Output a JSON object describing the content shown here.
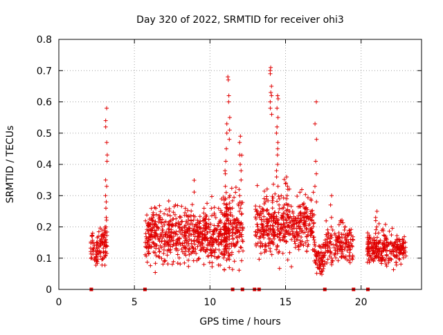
{
  "chart_data": {
    "type": "scatter",
    "title": "Day 320 of 2022, SRMTID for receiver ohi3",
    "xlabel": "GPS time / hours",
    "ylabel": "SRMTID / TECUs",
    "xlim": [
      0,
      24
    ],
    "ylim": [
      0,
      0.8
    ],
    "xticks": [
      0,
      5,
      10,
      15,
      20
    ],
    "yticks": [
      0,
      0.1,
      0.2,
      0.3,
      0.4,
      0.5,
      0.6,
      0.7,
      0.8
    ],
    "grid": true,
    "marker": "plus",
    "color": "#e00000",
    "clusters": [
      {
        "x": [
          2.1,
          3.2
        ],
        "base": 0.14,
        "spread": 0.05,
        "n": 110
      },
      {
        "x": [
          5.7,
          11.3
        ],
        "base": 0.17,
        "spread": 0.07,
        "n": 650
      },
      {
        "x": [
          10.9,
          12.2
        ],
        "base": 0.2,
        "spread": 0.09,
        "n": 140
      },
      {
        "x": [
          13.0,
          16.9
        ],
        "base": 0.2,
        "spread": 0.07,
        "n": 450
      },
      {
        "x": [
          16.9,
          17.6
        ],
        "base": 0.1,
        "spread": 0.04,
        "n": 70
      },
      {
        "x": [
          17.6,
          19.5
        ],
        "base": 0.14,
        "spread": 0.05,
        "n": 160
      },
      {
        "x": [
          20.4,
          23.0
        ],
        "base": 0.13,
        "spread": 0.04,
        "n": 260
      }
    ],
    "spikes": [
      {
        "x": 3.15,
        "y": [
          0.58,
          0.54,
          0.52,
          0.47,
          0.43,
          0.41,
          0.35,
          0.33,
          0.3,
          0.28,
          0.26,
          0.23,
          0.2,
          0.18
        ]
      },
      {
        "x": 11.05,
        "y": [
          0.53,
          0.5,
          0.45,
          0.41,
          0.38,
          0.37,
          0.33,
          0.31,
          0.29,
          0.27,
          0.25
        ]
      },
      {
        "x": 11.25,
        "y": [
          0.68,
          0.67,
          0.62,
          0.6,
          0.55,
          0.51,
          0.48
        ]
      },
      {
        "x": 12.0,
        "y": [
          0.49,
          0.47,
          0.43,
          0.4,
          0.38,
          0.35,
          0.32,
          0.3,
          0.26,
          0.25
        ]
      },
      {
        "x": 14.05,
        "y": [
          0.71,
          0.7,
          0.69,
          0.65,
          0.63,
          0.62,
          0.6,
          0.58,
          0.56
        ]
      },
      {
        "x": 14.45,
        "y": [
          0.62,
          0.61,
          0.58,
          0.55,
          0.52,
          0.5,
          0.47,
          0.45,
          0.43,
          0.4,
          0.38,
          0.36,
          0.33
        ]
      },
      {
        "x": 15.1,
        "y": [
          0.36,
          0.34,
          0.33,
          0.32,
          0.3,
          0.29,
          0.27
        ]
      },
      {
        "x": 17.0,
        "y": [
          0.6,
          0.53,
          0.48,
          0.41,
          0.37,
          0.33,
          0.28
        ]
      },
      {
        "x": 18.0,
        "y": [
          0.3,
          0.27,
          0.23,
          0.2
        ]
      },
      {
        "x": 21.0,
        "y": [
          0.25,
          0.23,
          0.22,
          0.2
        ]
      }
    ],
    "zero_points": [
      2.15,
      5.7,
      11.5,
      12.15,
      12.95,
      13.25,
      17.6,
      19.5,
      20.45
    ]
  }
}
